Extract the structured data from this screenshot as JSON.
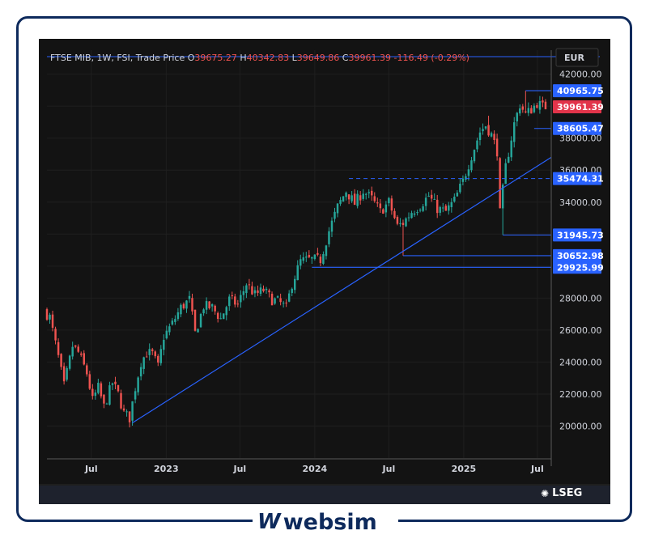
{
  "header": {
    "symbol": "FTSE MIB, 1W, FSI, Trade Price",
    "o_label": "O",
    "o_value": "39675.27",
    "h_label": "H",
    "h_value": "40342.83",
    "l_label": "L",
    "l_value": "39649.86",
    "c_label": "C",
    "c_value": "39961.39",
    "change": "-116.49 (-0.29%)"
  },
  "currency": "EUR",
  "provider": "LSEG",
  "brand": {
    "mark": "W",
    "name": "websim"
  },
  "colors": {
    "background": "#131313",
    "up": "#26a69a",
    "down": "#ef5350",
    "level": "#2962ff",
    "last_price": "#e2344a",
    "header_value": "#ef5350"
  },
  "chart_data": {
    "type": "candlestick",
    "interval": "1W",
    "y_axis": {
      "ticks": [
        20000,
        22000,
        24000,
        26000,
        28000,
        30000,
        32000,
        34000,
        36000,
        38000,
        40000,
        42000
      ],
      "tick_labels": [
        "20000.00",
        "22000.00",
        "24000.00",
        "26000.00",
        "28000.00",
        "",
        "",
        "34000.00",
        "36000.00",
        "38000.00",
        "",
        "42000.00"
      ],
      "ylim": [
        18000,
        43500
      ]
    },
    "x_axis": {
      "tick_labels": [
        "Jul",
        "2023",
        "Jul",
        "2024",
        "Jul",
        "2025",
        "Jul"
      ],
      "tick_dates": [
        "2022-07-01",
        "2023-01-01",
        "2023-07-01",
        "2024-01-01",
        "2024-07-01",
        "2025-01-01",
        "2025-07-01"
      ],
      "xlim": [
        "2022-03-14",
        "2025-08-04"
      ]
    },
    "price_path": [
      [
        "2022-03-14",
        27200
      ],
      [
        "2022-03-28",
        26800
      ],
      [
        "2022-04-18",
        24300
      ],
      [
        "2022-05-02",
        22500
      ],
      [
        "2022-05-23",
        25000
      ],
      [
        "2022-06-06",
        24600
      ],
      [
        "2022-06-27",
        23300
      ],
      [
        "2022-07-11",
        21600
      ],
      [
        "2022-07-25",
        22400
      ],
      [
        "2022-08-08",
        21200
      ],
      [
        "2022-08-29",
        22700
      ],
      [
        "2022-09-12",
        22000
      ],
      [
        "2022-09-26",
        20800
      ],
      [
        "2022-10-10",
        20500
      ],
      [
        "2022-10-24",
        22400
      ],
      [
        "2022-11-07",
        24000
      ],
      [
        "2022-11-21",
        24600
      ],
      [
        "2022-12-05",
        24500
      ],
      [
        "2022-12-19",
        23700
      ],
      [
        "2023-01-02",
        25600
      ],
      [
        "2023-01-23",
        26400
      ],
      [
        "2023-02-13",
        27400
      ],
      [
        "2023-03-06",
        27900
      ],
      [
        "2023-03-20",
        25800
      ],
      [
        "2023-04-10",
        27500
      ],
      [
        "2023-05-01",
        27400
      ],
      [
        "2023-05-22",
        26700
      ],
      [
        "2023-06-12",
        27900
      ],
      [
        "2023-07-03",
        27600
      ],
      [
        "2023-07-24",
        28900
      ],
      [
        "2023-08-14",
        28200
      ],
      [
        "2023-09-04",
        28500
      ],
      [
        "2023-09-25",
        27900
      ],
      [
        "2023-10-09",
        27800
      ],
      [
        "2023-10-30",
        27400
      ],
      [
        "2023-11-13",
        28900
      ],
      [
        "2023-12-04",
        30300
      ],
      [
        "2023-12-25",
        30400
      ],
      [
        "2024-01-22",
        30400
      ],
      [
        "2024-02-12",
        32200
      ],
      [
        "2024-03-04",
        33700
      ],
      [
        "2024-03-25",
        34700
      ],
      [
        "2024-04-15",
        33900
      ],
      [
        "2024-05-06",
        34700
      ],
      [
        "2024-05-27",
        34200
      ],
      [
        "2024-06-17",
        33400
      ],
      [
        "2024-07-08",
        34000
      ],
      [
        "2024-07-29",
        32500
      ],
      [
        "2024-08-12",
        32700
      ],
      [
        "2024-09-02",
        33400
      ],
      [
        "2024-09-23",
        33800
      ],
      [
        "2024-10-14",
        34400
      ],
      [
        "2024-11-04",
        33600
      ],
      [
        "2024-11-25",
        33400
      ],
      [
        "2024-12-16",
        34100
      ],
      [
        "2025-01-06",
        35300
      ],
      [
        "2025-01-27",
        36900
      ],
      [
        "2025-02-17",
        38400
      ],
      [
        "2025-03-03",
        38800
      ],
      [
        "2025-03-17",
        38200
      ],
      [
        "2025-03-31",
        37200
      ],
      [
        "2025-04-07",
        33300
      ],
      [
        "2025-04-21",
        36200
      ],
      [
        "2025-05-12",
        38900
      ],
      [
        "2025-05-26",
        40100
      ],
      [
        "2025-06-09",
        39500
      ],
      [
        "2025-06-23",
        39800
      ],
      [
        "2025-07-07",
        40200
      ],
      [
        "2025-07-21",
        39961
      ]
    ],
    "wick_extremes": [
      [
        "2025-04-07",
        31945.73,
        "low"
      ],
      [
        "2024-08-05",
        30652.98,
        "low"
      ],
      [
        "2025-03-03",
        39400,
        "high"
      ],
      [
        "2025-06-02",
        40965.75,
        "high"
      ]
    ],
    "trendline": {
      "from": [
        "2022-10-10",
        20200
      ],
      "to": [
        "2025-08-04",
        36800
      ]
    },
    "dashed_level": {
      "value": 35474.31,
      "from": "2024-03-25"
    },
    "horizontal_levels": [
      {
        "value": 40965.75,
        "label": "40965.75",
        "from": "2025-06-02"
      },
      {
        "value": 38605.47,
        "label": "38605.47",
        "from": "2025-06-23"
      },
      {
        "value": 35474.31,
        "label": "35474.31",
        "from": "2024-03-25",
        "dashed": true
      },
      {
        "value": 31945.73,
        "label": "31945.73",
        "from": "2025-04-07"
      },
      {
        "value": 30652.98,
        "label": "30652.98",
        "from": "2024-08-05"
      },
      {
        "value": 29925.99,
        "label": "29925.99",
        "from": "2023-12-25"
      }
    ],
    "last_price": {
      "value": 39961.39,
      "label": "39961.39"
    }
  }
}
